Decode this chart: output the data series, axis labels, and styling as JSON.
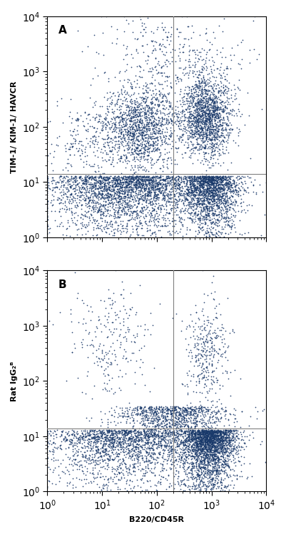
{
  "panel_A_label": "A",
  "panel_B_label": "B",
  "xlabel": "B220/CD45R",
  "ylabel_A": "TIM-1/ KIM-1/ HAVCR",
  "ylabel_B": "Rat IgG₂ᴮ",
  "xline": 200,
  "yline_A": 14,
  "yline_B": 14,
  "xlim": [
    1,
    10000
  ],
  "ylim": [
    1,
    10000
  ],
  "dot_color": "#1a3a6b",
  "dot_size": 1.5,
  "line_color": "#808080",
  "bg_color": "#ffffff",
  "n_points_A": 8000,
  "n_points_B": 6000,
  "seed_A": 42,
  "seed_B": 99
}
